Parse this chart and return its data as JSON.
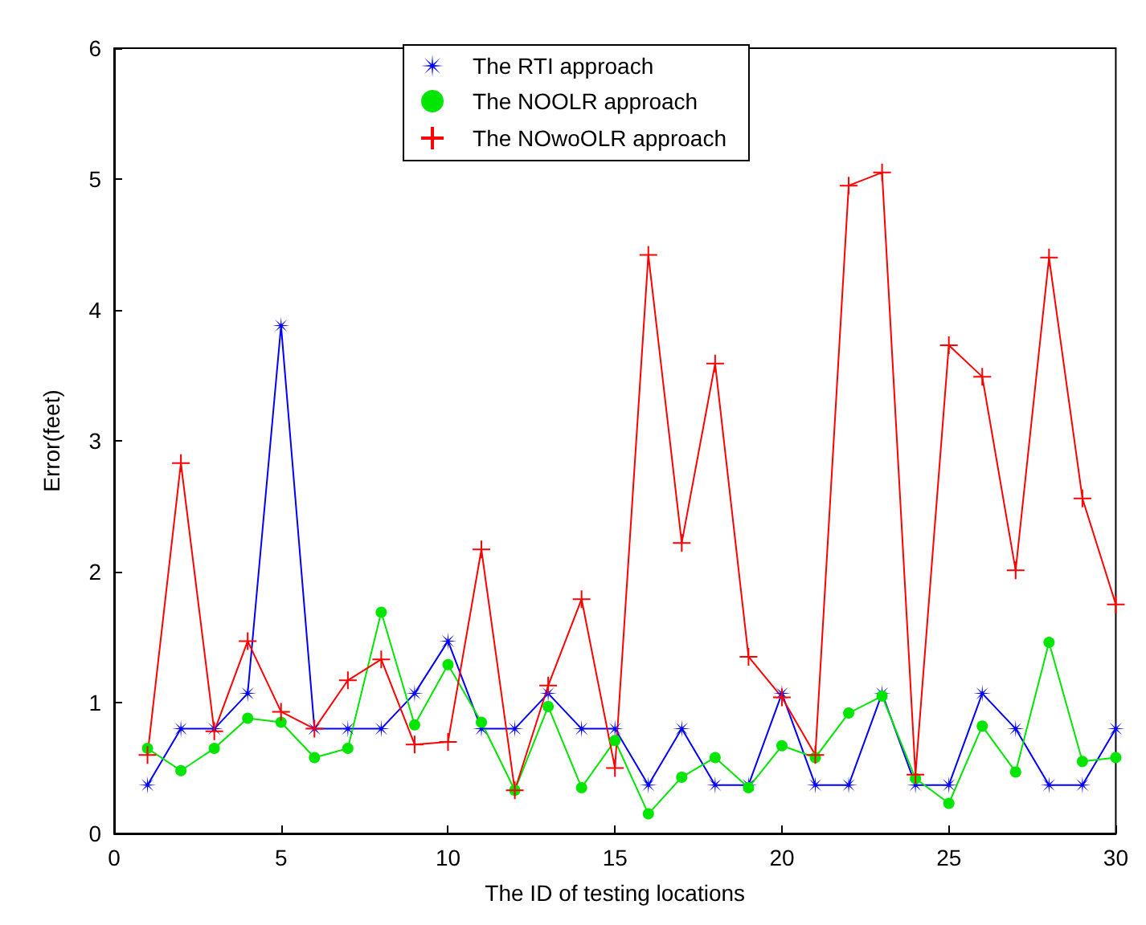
{
  "chart_data": {
    "type": "line",
    "xlabel": "The ID of testing locations",
    "ylabel": "Error(feet)",
    "x": [
      1,
      2,
      3,
      4,
      5,
      6,
      7,
      8,
      9,
      10,
      11,
      12,
      13,
      14,
      15,
      16,
      17,
      18,
      19,
      20,
      21,
      22,
      23,
      24,
      25,
      26,
      27,
      28,
      29,
      30
    ],
    "series": [
      {
        "name": "The RTI approach",
        "color": "#0000ff",
        "marker": "star",
        "values": [
          0.37,
          0.8,
          0.8,
          1.07,
          3.88,
          0.8,
          0.8,
          0.8,
          1.07,
          1.47,
          0.8,
          0.8,
          1.07,
          0.8,
          0.8,
          0.37,
          0.8,
          0.37,
          0.37,
          1.07,
          0.37,
          0.37,
          1.07,
          0.37,
          0.37,
          1.07,
          0.8,
          0.37,
          0.37,
          0.8
        ]
      },
      {
        "name": "The NOOLR approach",
        "color": "#00e600",
        "marker": "circle",
        "values": [
          0.65,
          0.48,
          0.65,
          0.88,
          0.85,
          0.58,
          0.65,
          1.69,
          0.83,
          1.29,
          0.85,
          0.33,
          0.97,
          0.35,
          0.71,
          0.15,
          0.43,
          0.58,
          0.35,
          0.67,
          0.58,
          0.92,
          1.05,
          0.42,
          0.23,
          0.82,
          0.47,
          1.46,
          0.55,
          0.58
        ]
      },
      {
        "name": "The NOwoOLR approach",
        "color": "#ff0000",
        "marker": "cross",
        "values": [
          0.6,
          2.83,
          0.78,
          1.47,
          0.93,
          0.8,
          1.17,
          1.33,
          0.68,
          0.7,
          2.17,
          0.33,
          1.13,
          1.79,
          0.5,
          4.42,
          2.22,
          3.59,
          1.35,
          1.04,
          0.6,
          4.95,
          5.05,
          0.45,
          3.73,
          3.49,
          2.01,
          4.4,
          2.56,
          1.75
        ]
      }
    ],
    "xlim": [
      0,
      30
    ],
    "xticks": [
      0,
      5,
      10,
      15,
      20,
      25,
      30
    ],
    "ylim": [
      0,
      6
    ],
    "yticks": [
      0,
      1,
      2,
      3,
      4,
      5,
      6
    ],
    "grid": false,
    "legend": "top",
    "line_style": "solid"
  }
}
